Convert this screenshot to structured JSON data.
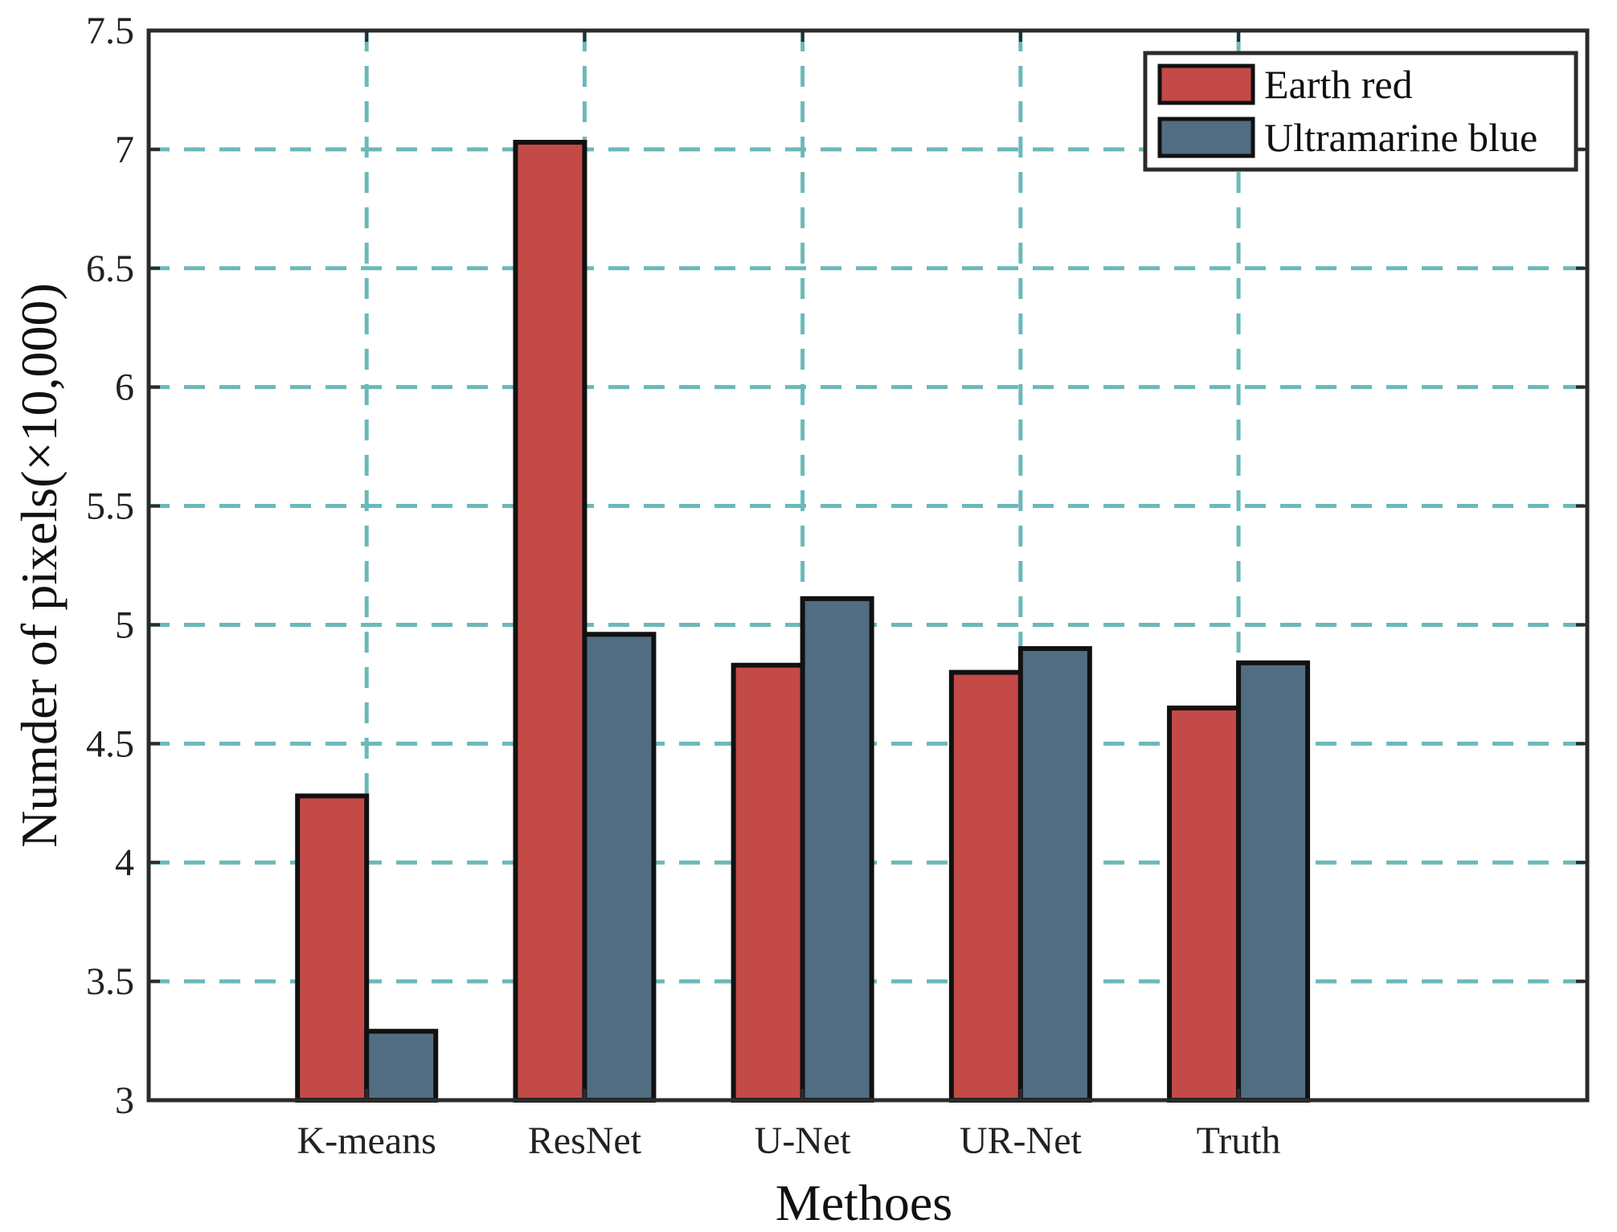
{
  "chart_data": {
    "type": "bar",
    "title": "",
    "xlabel": "Methoes",
    "ylabel": "Numder of pixels(×10,000)",
    "categories": [
      "K-means",
      "ResNet",
      "U-Net",
      "UR-Net",
      "Truth"
    ],
    "series": [
      {
        "name": "Earth red",
        "color": "#c44a47",
        "values": [
          4.28,
          7.03,
          4.83,
          4.8,
          4.65
        ]
      },
      {
        "name": "Ultramarine blue",
        "color": "#506d82",
        "values": [
          3.29,
          4.96,
          5.11,
          4.9,
          4.84
        ]
      }
    ],
    "ylim": [
      3,
      7.5
    ],
    "yticks": [
      "3",
      "3.5",
      "4",
      "4.5",
      "5",
      "5.5",
      "6",
      "6.5",
      "7",
      "7.5"
    ],
    "grid": true,
    "grid_color": "#6bb9b9",
    "legend_position": "top-right"
  }
}
